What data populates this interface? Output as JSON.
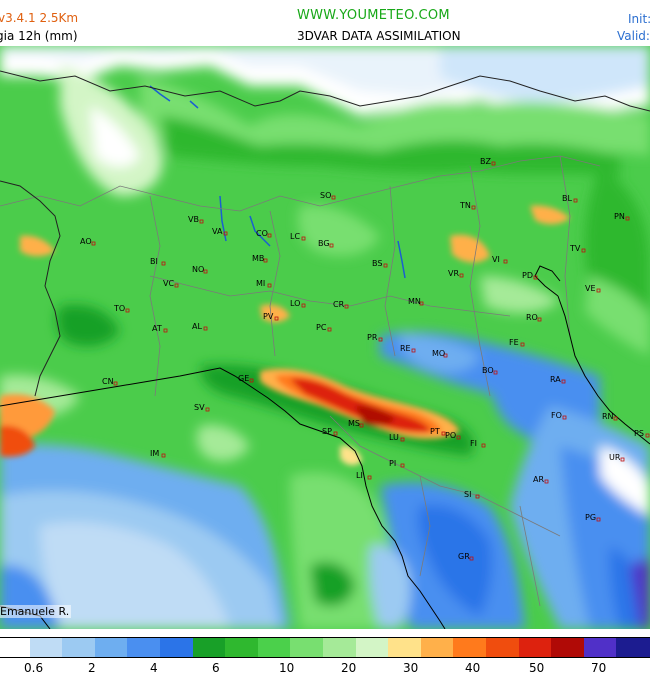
{
  "header": {
    "model": "v3.4.1  2.5Km",
    "variable": "gia 12h (mm)",
    "site": "WWW.YOUMETEO.COM",
    "assimilation": "3DVAR DATA ASSIMILATION",
    "init": "Init:",
    "valid": "Valid:"
  },
  "author": "Emanuele R.",
  "legend": {
    "colors": [
      "#ffffff",
      "#bfdcf5",
      "#9ccaf2",
      "#6eaef0",
      "#4a8ff0",
      "#2b74e8",
      "#18a028",
      "#2fb82f",
      "#4bd04b",
      "#78df70",
      "#a5ea98",
      "#d3f5c6",
      "#ffe28a",
      "#ffb04a",
      "#ff7a1c",
      "#f04d0e",
      "#dd220e",
      "#b00a06",
      "#5030c8",
      "#1c1c90"
    ],
    "ticks": [
      {
        "label": "0.6"
      },
      {
        "label": "2"
      },
      {
        "label": "4"
      },
      {
        "label": "6"
      },
      {
        "label": "10"
      },
      {
        "label": "20"
      },
      {
        "label": "30"
      },
      {
        "label": "40"
      },
      {
        "label": "50"
      },
      {
        "label": "70"
      }
    ]
  },
  "cities": [
    "AO",
    "BI",
    "VB",
    "VA",
    "CO",
    "LC",
    "BG",
    "SO",
    "BS",
    "TN",
    "BZ",
    "BL",
    "PN",
    "TV",
    "VE",
    "PD",
    "VI",
    "VR",
    "NO",
    "MB",
    "MI",
    "VC",
    "TO",
    "AT",
    "AL",
    "PV",
    "LO",
    "CR",
    "PC",
    "MN",
    "RO",
    "FE",
    "PR",
    "RE",
    "MO",
    "BO",
    "RA",
    "GE",
    "SV",
    "CN",
    "IM",
    "SP",
    "MS",
    "LU",
    "PT",
    "PO",
    "FI",
    "PI",
    "LI",
    "SI",
    "AR",
    "GR",
    "PG",
    "FO",
    "RN",
    "PS",
    "UR"
  ]
}
